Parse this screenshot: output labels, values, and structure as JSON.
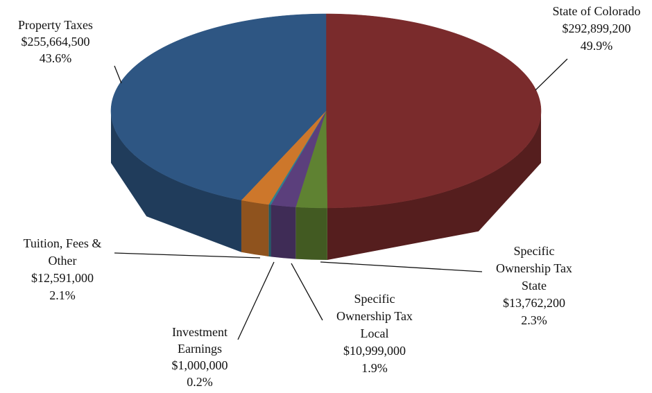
{
  "chart_data": {
    "type": "pie3d",
    "categories": [
      [
        "State of Colorado"
      ],
      [
        "Specific",
        "Ownership Tax",
        "State"
      ],
      [
        "Specific",
        "Ownership Tax",
        "Local"
      ],
      [
        "Investment",
        "Earnings"
      ],
      [
        "Tuition, Fees &",
        "Other"
      ],
      [
        "Property Taxes"
      ]
    ],
    "values": [
      292899200,
      13762200,
      10999000,
      1000000,
      12591000,
      255664500
    ],
    "value_labels": [
      "$292,899,200",
      "$13,762,200",
      "$10,999,000",
      "$1,000,000",
      "$12,591,000",
      "$255,664,500"
    ],
    "percents": [
      49.9,
      2.3,
      1.9,
      0.2,
      2.1,
      43.6
    ],
    "percent_labels": [
      "49.9%",
      "2.3%",
      "1.9%",
      "0.2%",
      "2.1%",
      "43.6%"
    ],
    "colors": [
      "#7a2b2c",
      "#5f8232",
      "#5b3f7c",
      "#2f8090",
      "#cd772b",
      "#2e5683"
    ]
  }
}
